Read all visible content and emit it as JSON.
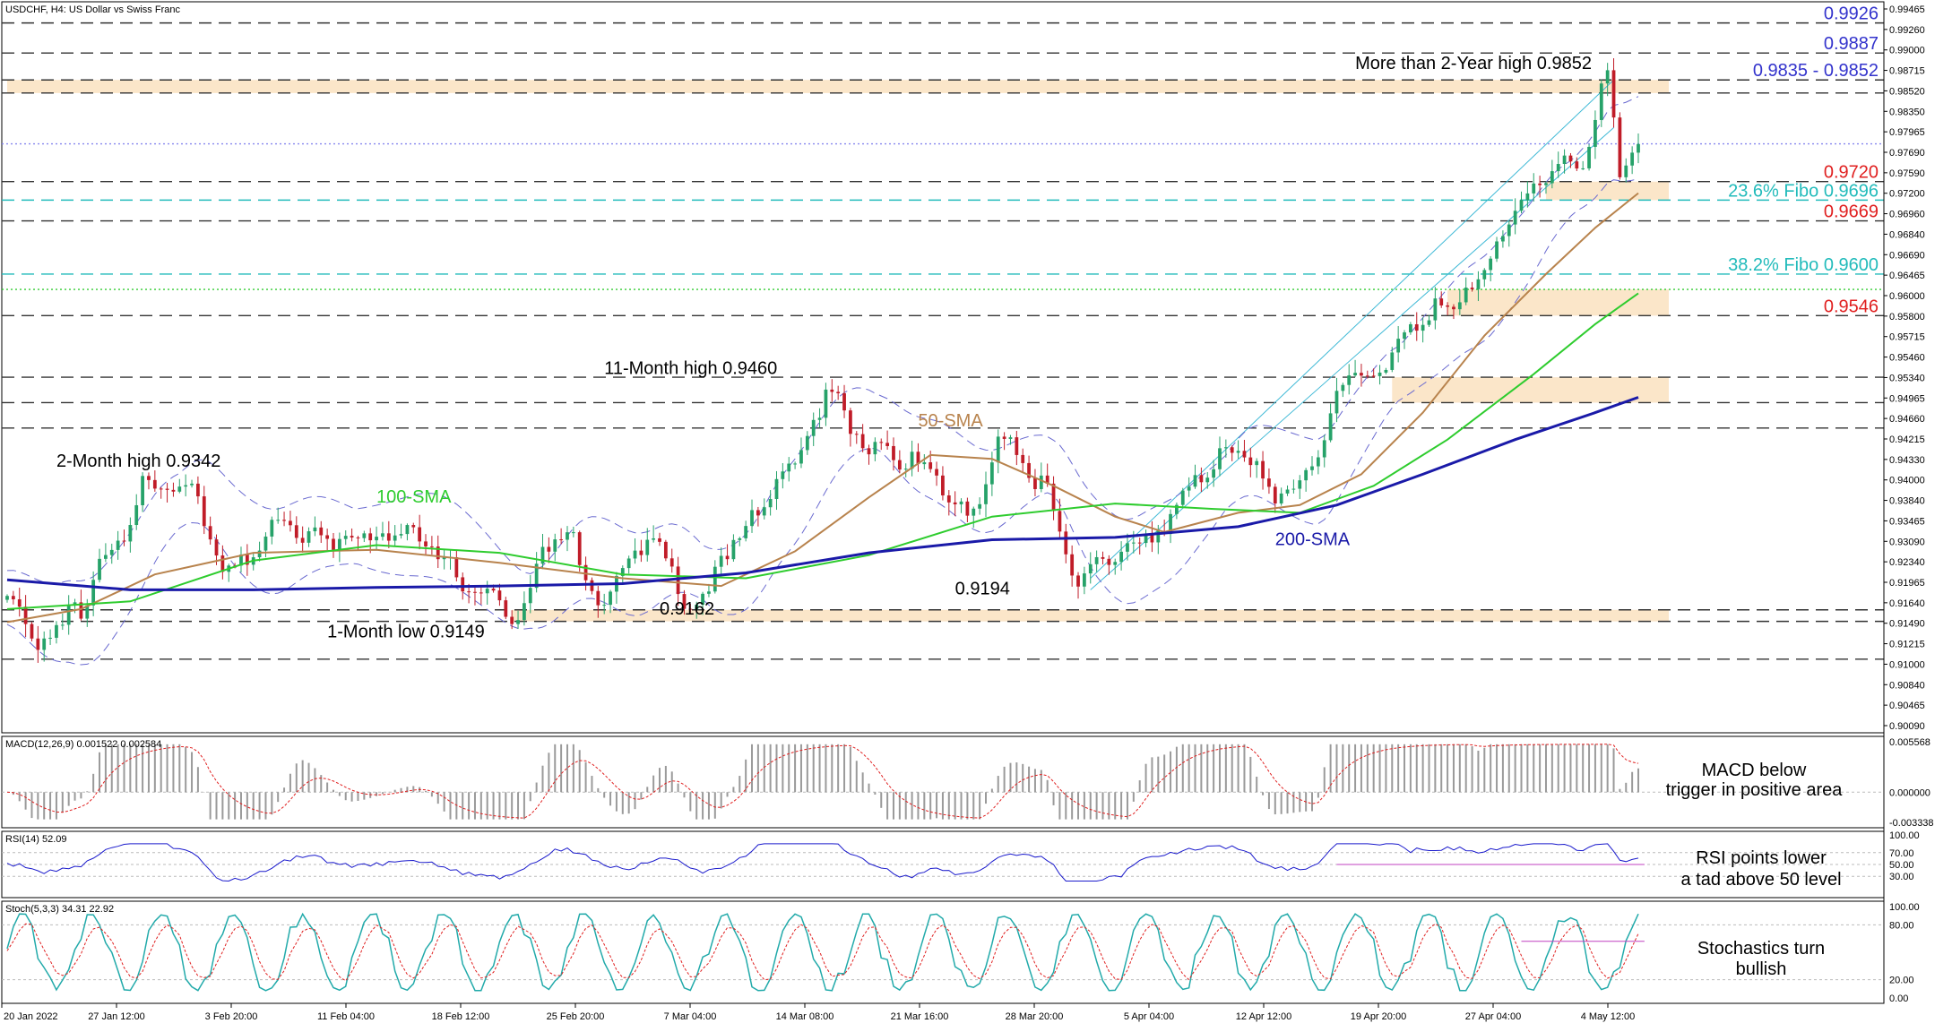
{
  "header": "USDCHF, H4:  US Dollar vs Swiss Franc",
  "title": "USDCHF - 4 Hour chart",
  "chart_data": {
    "type": "candlestick",
    "symbol": "USDCHF",
    "timeframe": "H4",
    "ylim": [
      0.9009,
      0.99465
    ],
    "price_axis_labels": [
      "0.99465",
      "0.99260",
      "0.99000",
      "0.98715",
      "0.98520",
      "0.98350",
      "0.97965",
      "0.97690",
      "0.97590",
      "0.97200",
      "0.96960",
      "0.96840",
      "0.96690",
      "0.96465",
      "0.96000",
      "0.95800",
      "0.95715",
      "0.95460",
      "0.95340",
      "0.94965",
      "0.94660",
      "0.94215",
      "0.94330",
      "0.94000",
      "0.93840",
      "0.93465",
      "0.93090",
      "0.92340",
      "0.91965",
      "0.91640",
      "0.91490",
      "0.91215",
      "0.91000",
      "0.90840",
      "0.90465",
      "0.90090"
    ],
    "x_labels": [
      "20 Jan 2022",
      "27 Jan 12:00",
      "3 Feb 20:00",
      "11 Feb 04:00",
      "18 Feb 12:00",
      "25 Feb 20:00",
      "7 Mar 04:00",
      "14 Mar 08:00",
      "21 Mar 16:00",
      "28 Mar 20:00",
      "5 Apr 04:00",
      "12 Apr 12:00",
      "19 Apr 20:00",
      "27 Apr 04:00",
      "4 May 12:00"
    ],
    "anchors": [
      {
        "t": 0,
        "v": 0.918
      },
      {
        "t": 6,
        "v": 0.9125
      },
      {
        "t": 12,
        "v": 0.917
      },
      {
        "t": 17,
        "v": 0.924
      },
      {
        "t": 23,
        "v": 0.933
      },
      {
        "t": 30,
        "v": 0.931
      },
      {
        "t": 36,
        "v": 0.9215
      },
      {
        "t": 44,
        "v": 0.927
      },
      {
        "t": 55,
        "v": 0.9255
      },
      {
        "t": 66,
        "v": 0.9265
      },
      {
        "t": 76,
        "v": 0.919
      },
      {
        "t": 82,
        "v": 0.9156
      },
      {
        "t": 90,
        "v": 0.927
      },
      {
        "t": 96,
        "v": 0.918
      },
      {
        "t": 104,
        "v": 0.9255
      },
      {
        "t": 112,
        "v": 0.917
      },
      {
        "t": 118,
        "v": 0.925
      },
      {
        "t": 126,
        "v": 0.934
      },
      {
        "t": 134,
        "v": 0.9445
      },
      {
        "t": 140,
        "v": 0.937
      },
      {
        "t": 148,
        "v": 0.9355
      },
      {
        "t": 156,
        "v": 0.929
      },
      {
        "t": 162,
        "v": 0.9385
      },
      {
        "t": 168,
        "v": 0.9325
      },
      {
        "t": 174,
        "v": 0.9205
      },
      {
        "t": 180,
        "v": 0.924
      },
      {
        "t": 186,
        "v": 0.926
      },
      {
        "t": 194,
        "v": 0.9345
      },
      {
        "t": 200,
        "v": 0.9375
      },
      {
        "t": 206,
        "v": 0.931
      },
      {
        "t": 212,
        "v": 0.9345
      },
      {
        "t": 216,
        "v": 0.945
      },
      {
        "t": 222,
        "v": 0.947
      },
      {
        "t": 230,
        "v": 0.9545
      },
      {
        "t": 238,
        "v": 0.958
      },
      {
        "t": 244,
        "v": 0.967
      },
      {
        "t": 250,
        "v": 0.9725
      },
      {
        "t": 256,
        "v": 0.975
      },
      {
        "t": 260,
        "v": 0.985
      },
      {
        "t": 262,
        "v": 0.973
      },
      {
        "t": 265,
        "v": 0.9775
      }
    ],
    "ma_series": [
      {
        "name": "50-SMA",
        "color": "#b8834d",
        "points": [
          {
            "t": 0,
            "v": 0.9148
          },
          {
            "t": 12,
            "v": 0.9165
          },
          {
            "t": 24,
            "v": 0.921
          },
          {
            "t": 40,
            "v": 0.9238
          },
          {
            "t": 60,
            "v": 0.9242
          },
          {
            "t": 80,
            "v": 0.9225
          },
          {
            "t": 100,
            "v": 0.9205
          },
          {
            "t": 116,
            "v": 0.9195
          },
          {
            "t": 128,
            "v": 0.924
          },
          {
            "t": 140,
            "v": 0.931
          },
          {
            "t": 150,
            "v": 0.9365
          },
          {
            "t": 160,
            "v": 0.936
          },
          {
            "t": 170,
            "v": 0.9325
          },
          {
            "t": 180,
            "v": 0.9285
          },
          {
            "t": 188,
            "v": 0.9265
          },
          {
            "t": 200,
            "v": 0.929
          },
          {
            "t": 210,
            "v": 0.93
          },
          {
            "t": 220,
            "v": 0.934
          },
          {
            "t": 230,
            "v": 0.942
          },
          {
            "t": 240,
            "v": 0.952
          },
          {
            "t": 250,
            "v": 0.96
          },
          {
            "t": 258,
            "v": 0.966
          },
          {
            "t": 265,
            "v": 0.9705
          }
        ]
      },
      {
        "name": "100-SMA",
        "color": "#2ecc2e",
        "points": [
          {
            "t": 0,
            "v": 0.9165
          },
          {
            "t": 20,
            "v": 0.9175
          },
          {
            "t": 40,
            "v": 0.9228
          },
          {
            "t": 60,
            "v": 0.9248
          },
          {
            "t": 80,
            "v": 0.9238
          },
          {
            "t": 100,
            "v": 0.921
          },
          {
            "t": 120,
            "v": 0.9205
          },
          {
            "t": 140,
            "v": 0.9235
          },
          {
            "t": 160,
            "v": 0.9285
          },
          {
            "t": 180,
            "v": 0.9302
          },
          {
            "t": 196,
            "v": 0.9295
          },
          {
            "t": 210,
            "v": 0.929
          },
          {
            "t": 222,
            "v": 0.9325
          },
          {
            "t": 234,
            "v": 0.9385
          },
          {
            "t": 248,
            "v": 0.947
          },
          {
            "t": 258,
            "v": 0.9535
          },
          {
            "t": 265,
            "v": 0.9575
          }
        ]
      },
      {
        "name": "200-SMA",
        "color": "#1a1aa8",
        "points": [
          {
            "t": 0,
            "v": 0.9203
          },
          {
            "t": 20,
            "v": 0.919
          },
          {
            "t": 40,
            "v": 0.919
          },
          {
            "t": 60,
            "v": 0.9193
          },
          {
            "t": 80,
            "v": 0.9195
          },
          {
            "t": 100,
            "v": 0.9198
          },
          {
            "t": 120,
            "v": 0.9212
          },
          {
            "t": 140,
            "v": 0.9238
          },
          {
            "t": 160,
            "v": 0.9255
          },
          {
            "t": 180,
            "v": 0.9258
          },
          {
            "t": 200,
            "v": 0.9272
          },
          {
            "t": 216,
            "v": 0.93
          },
          {
            "t": 230,
            "v": 0.934
          },
          {
            "t": 245,
            "v": 0.9385
          },
          {
            "t": 258,
            "v": 0.942
          },
          {
            "t": 265,
            "v": 0.944
          }
        ]
      }
    ],
    "levels": [
      {
        "value": 0.9926,
        "label": "0.9926",
        "color": "#3333cc",
        "style": "dashed"
      },
      {
        "value": 0.9887,
        "label": "0.9887",
        "color": "#3333cc",
        "style": "dashed"
      },
      {
        "value": 0.9852,
        "label": "0.9835 - 0.9852",
        "color": "#3333cc",
        "style": "dashed"
      },
      {
        "value": 0.9835,
        "label": "",
        "color": "#333333",
        "style": "dashed"
      },
      {
        "value": 0.9769,
        "label": "",
        "color": "#8888ee",
        "style": "dotted"
      },
      {
        "value": 0.972,
        "label": "0.9720",
        "color": "#e02020",
        "style": "dashed"
      },
      {
        "value": 0.9696,
        "label": "23.6% Fibo 0.9696",
        "color": "#22bbbb",
        "style": "dashed"
      },
      {
        "value": 0.9669,
        "label": "0.9669",
        "color": "#e02020",
        "style": "dashed"
      },
      {
        "value": 0.96,
        "label": "38.2% Fibo 0.9600",
        "color": "#22bbbb",
        "style": "dashed"
      },
      {
        "value": 0.958,
        "label": "",
        "color": "#33cc33",
        "style": "dotted"
      },
      {
        "value": 0.9546,
        "label": "0.9546",
        "color": "#e02020",
        "style": "dashed"
      },
      {
        "value": 0.9466,
        "label": "",
        "color": "#333333",
        "style": "dashed"
      },
      {
        "value": 0.9433,
        "label": "",
        "color": "#333333",
        "style": "dashed"
      },
      {
        "value": 0.94,
        "label": "",
        "color": "#333333",
        "style": "dashed"
      },
      {
        "value": 0.9164,
        "label": "",
        "color": "#333333",
        "style": "dashed"
      },
      {
        "value": 0.9149,
        "label": "",
        "color": "#333333",
        "style": "dashed"
      },
      {
        "value": 0.91,
        "label": "",
        "color": "#333333",
        "style": "dashed"
      }
    ],
    "zones": [
      {
        "from": 0.9835,
        "to": 0.9852,
        "t_start": 0
      },
      {
        "from": 0.9696,
        "to": 0.972,
        "t_start": 250
      },
      {
        "from": 0.9546,
        "to": 0.958,
        "t_start": 234
      },
      {
        "from": 0.9433,
        "to": 0.9466,
        "t_start": 225
      },
      {
        "from": 0.9149,
        "to": 0.9164,
        "t_start": 82
      }
    ],
    "channel": [
      {
        "t1": 176,
        "v1": 0.9205,
        "t2": 261,
        "v2": 0.9852
      },
      {
        "t1": 176,
        "v1": 0.919,
        "t2": 261,
        "v2": 0.979
      }
    ],
    "annotations": [
      {
        "text": "More than 2-Year high 0.9852",
        "t": 219,
        "v": 0.9866,
        "color": "#000000",
        "anchor": "start"
      },
      {
        "text": "11-Month high 0.9460",
        "t": 97,
        "v": 0.947,
        "color": "#000000",
        "anchor": "start"
      },
      {
        "text": "50-SMA",
        "t": 148,
        "v": 0.9402,
        "color": "#b8834d",
        "anchor": "start"
      },
      {
        "text": "2-Month high 0.9342",
        "t": 8,
        "v": 0.935,
        "color": "#000000",
        "anchor": "start"
      },
      {
        "text": "100-SMA",
        "t": 60,
        "v": 0.9303,
        "color": "#2ecc2e",
        "anchor": "start"
      },
      {
        "text": "200-SMA",
        "t": 206,
        "v": 0.9248,
        "color": "#1a1aa8",
        "anchor": "start"
      },
      {
        "text": "0.9194",
        "t": 154,
        "v": 0.9184,
        "color": "#000000",
        "anchor": "start"
      },
      {
        "text": "0.9162",
        "t": 106,
        "v": 0.9158,
        "color": "#000000",
        "anchor": "start"
      },
      {
        "text": "1-Month low 0.9149",
        "t": 52,
        "v": 0.9128,
        "color": "#000000",
        "anchor": "start"
      }
    ],
    "panels": {
      "macd": {
        "label": "MACD(12,26,9) 0.001522 0.002584",
        "ylim": [
          -0.003338,
          0.005568
        ],
        "axis_labels": [
          "0.005568",
          "0.000000",
          "-0.003338"
        ],
        "note": [
          "MACD below",
          "trigger in positive area"
        ]
      },
      "rsi": {
        "label": "RSI(14) 52.09",
        "ylim": [
          0,
          100
        ],
        "axis_labels": [
          "100.00",
          "70.00",
          "50.00",
          "30.00"
        ],
        "levels": [
          70,
          50,
          30
        ],
        "note": [
          "RSI points lower",
          "a tad above 50 level"
        ]
      },
      "stoch": {
        "label": "Stoch(5,3,3) 34.31 22.92",
        "ylim": [
          0,
          100
        ],
        "axis_labels": [
          "100.00",
          "80.00",
          "20.00",
          "0.00"
        ],
        "levels": [
          80,
          20
        ],
        "note": [
          "Stochastics turn",
          "bullish"
        ]
      }
    }
  }
}
